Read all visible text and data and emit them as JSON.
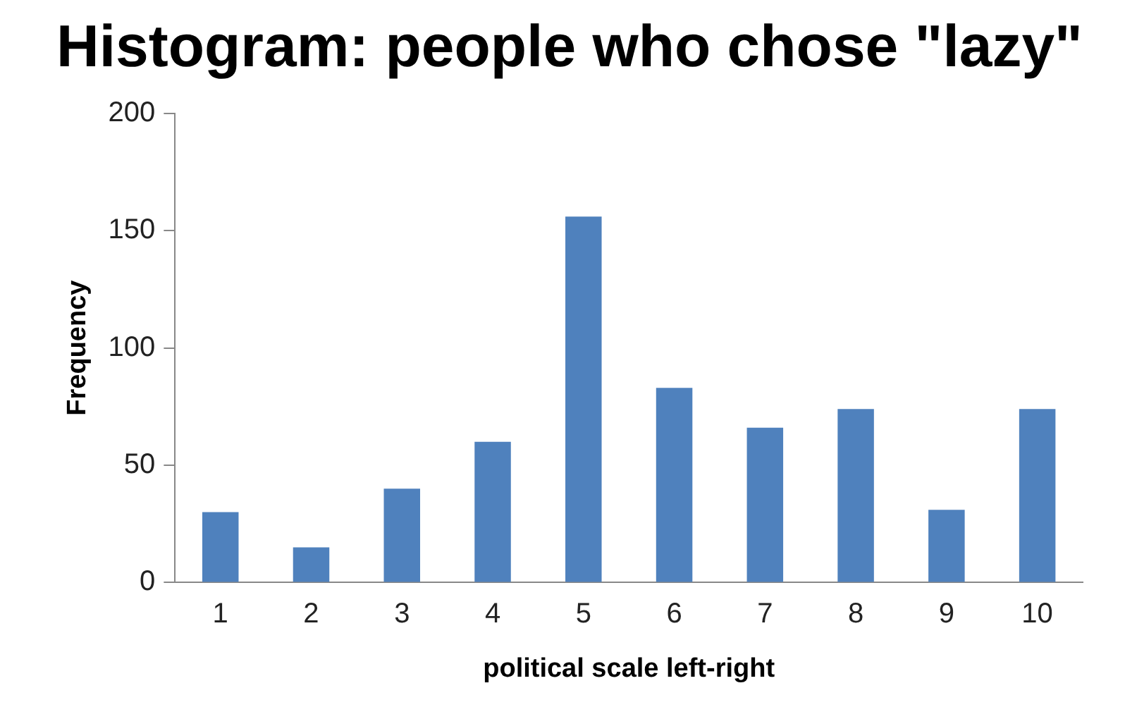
{
  "chart_data": {
    "type": "bar",
    "title": "Histogram: people who chose \"lazy\"",
    "xlabel": "political scale left-right",
    "ylabel": "Frequency",
    "categories": [
      "1",
      "2",
      "3",
      "4",
      "5",
      "6",
      "7",
      "8",
      "9",
      "10"
    ],
    "series": [
      {
        "color": "#4f81bd",
        "values": [
          30,
          15,
          40,
          60,
          156,
          83,
          66,
          74,
          31,
          74
        ]
      }
    ],
    "ylim": [
      0,
      200
    ],
    "yticks": [
      0,
      50,
      100,
      150,
      200
    ],
    "grid": false,
    "legend": false
  }
}
